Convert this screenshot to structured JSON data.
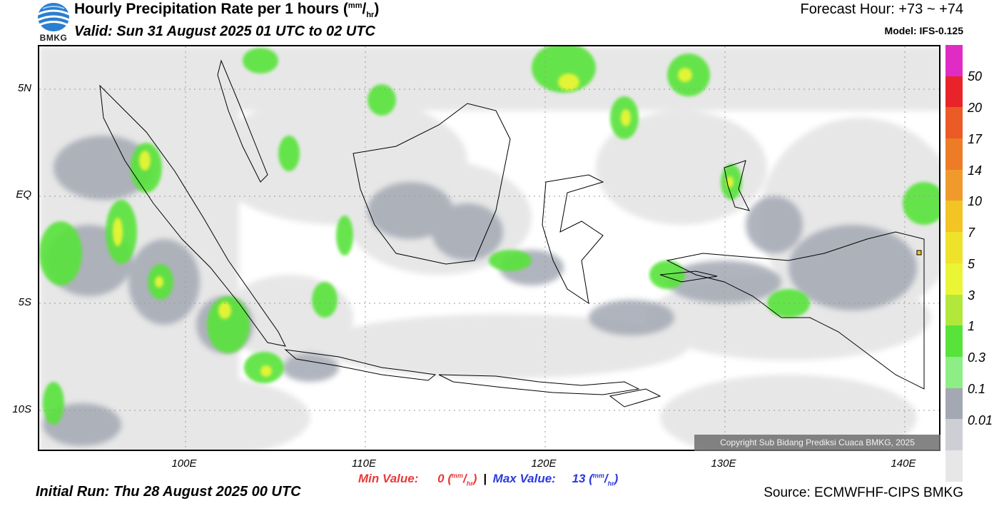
{
  "header": {
    "title": "Hourly Precipitation Rate per 1 hours",
    "title_unit_num": "mm",
    "title_unit_den": "hr",
    "valid": "Valid: Sun 31 August 2025 01 UTC to 02 UTC",
    "forecast_hour": "Forecast Hour: +73 ~ +74",
    "model": "Model: IFS-0.125"
  },
  "logo": {
    "text": "BMKG",
    "icon": "bmkg-logo-icon"
  },
  "map": {
    "lat_labels": [
      "5N",
      "EQ",
      "5S",
      "10S"
    ],
    "lon_labels": [
      "100E",
      "110E",
      "120E",
      "130E",
      "140E"
    ],
    "copyright": "Copyright Sub Bidang Prediksi Cuaca BMKG, 2025"
  },
  "colorbar": {
    "labels": [
      "50",
      "20",
      "17",
      "14",
      "10",
      "7",
      "5",
      "3",
      "1",
      "0.3",
      "0.1",
      "0.01"
    ],
    "colors": [
      "#e02cc4",
      "#e8242a",
      "#ea5b25",
      "#ee7c26",
      "#f19a2c",
      "#f2c424",
      "#efe22a",
      "#e9f535",
      "#b1e83b",
      "#58e33a",
      "#8cee84",
      "#a3a8b3",
      "#cdcfd4",
      "#e7e7e7"
    ]
  },
  "footer": {
    "min_label": "Min Value:",
    "min_value": "0",
    "max_label": "Max Value:",
    "max_value": "13",
    "unit_num": "mm",
    "unit_den": "hr",
    "separator": "|",
    "initial_run": "Initial Run: Thu 28 August 2025 00 UTC",
    "source": "Source: ECMWFHF-CIPS BMKG"
  }
}
